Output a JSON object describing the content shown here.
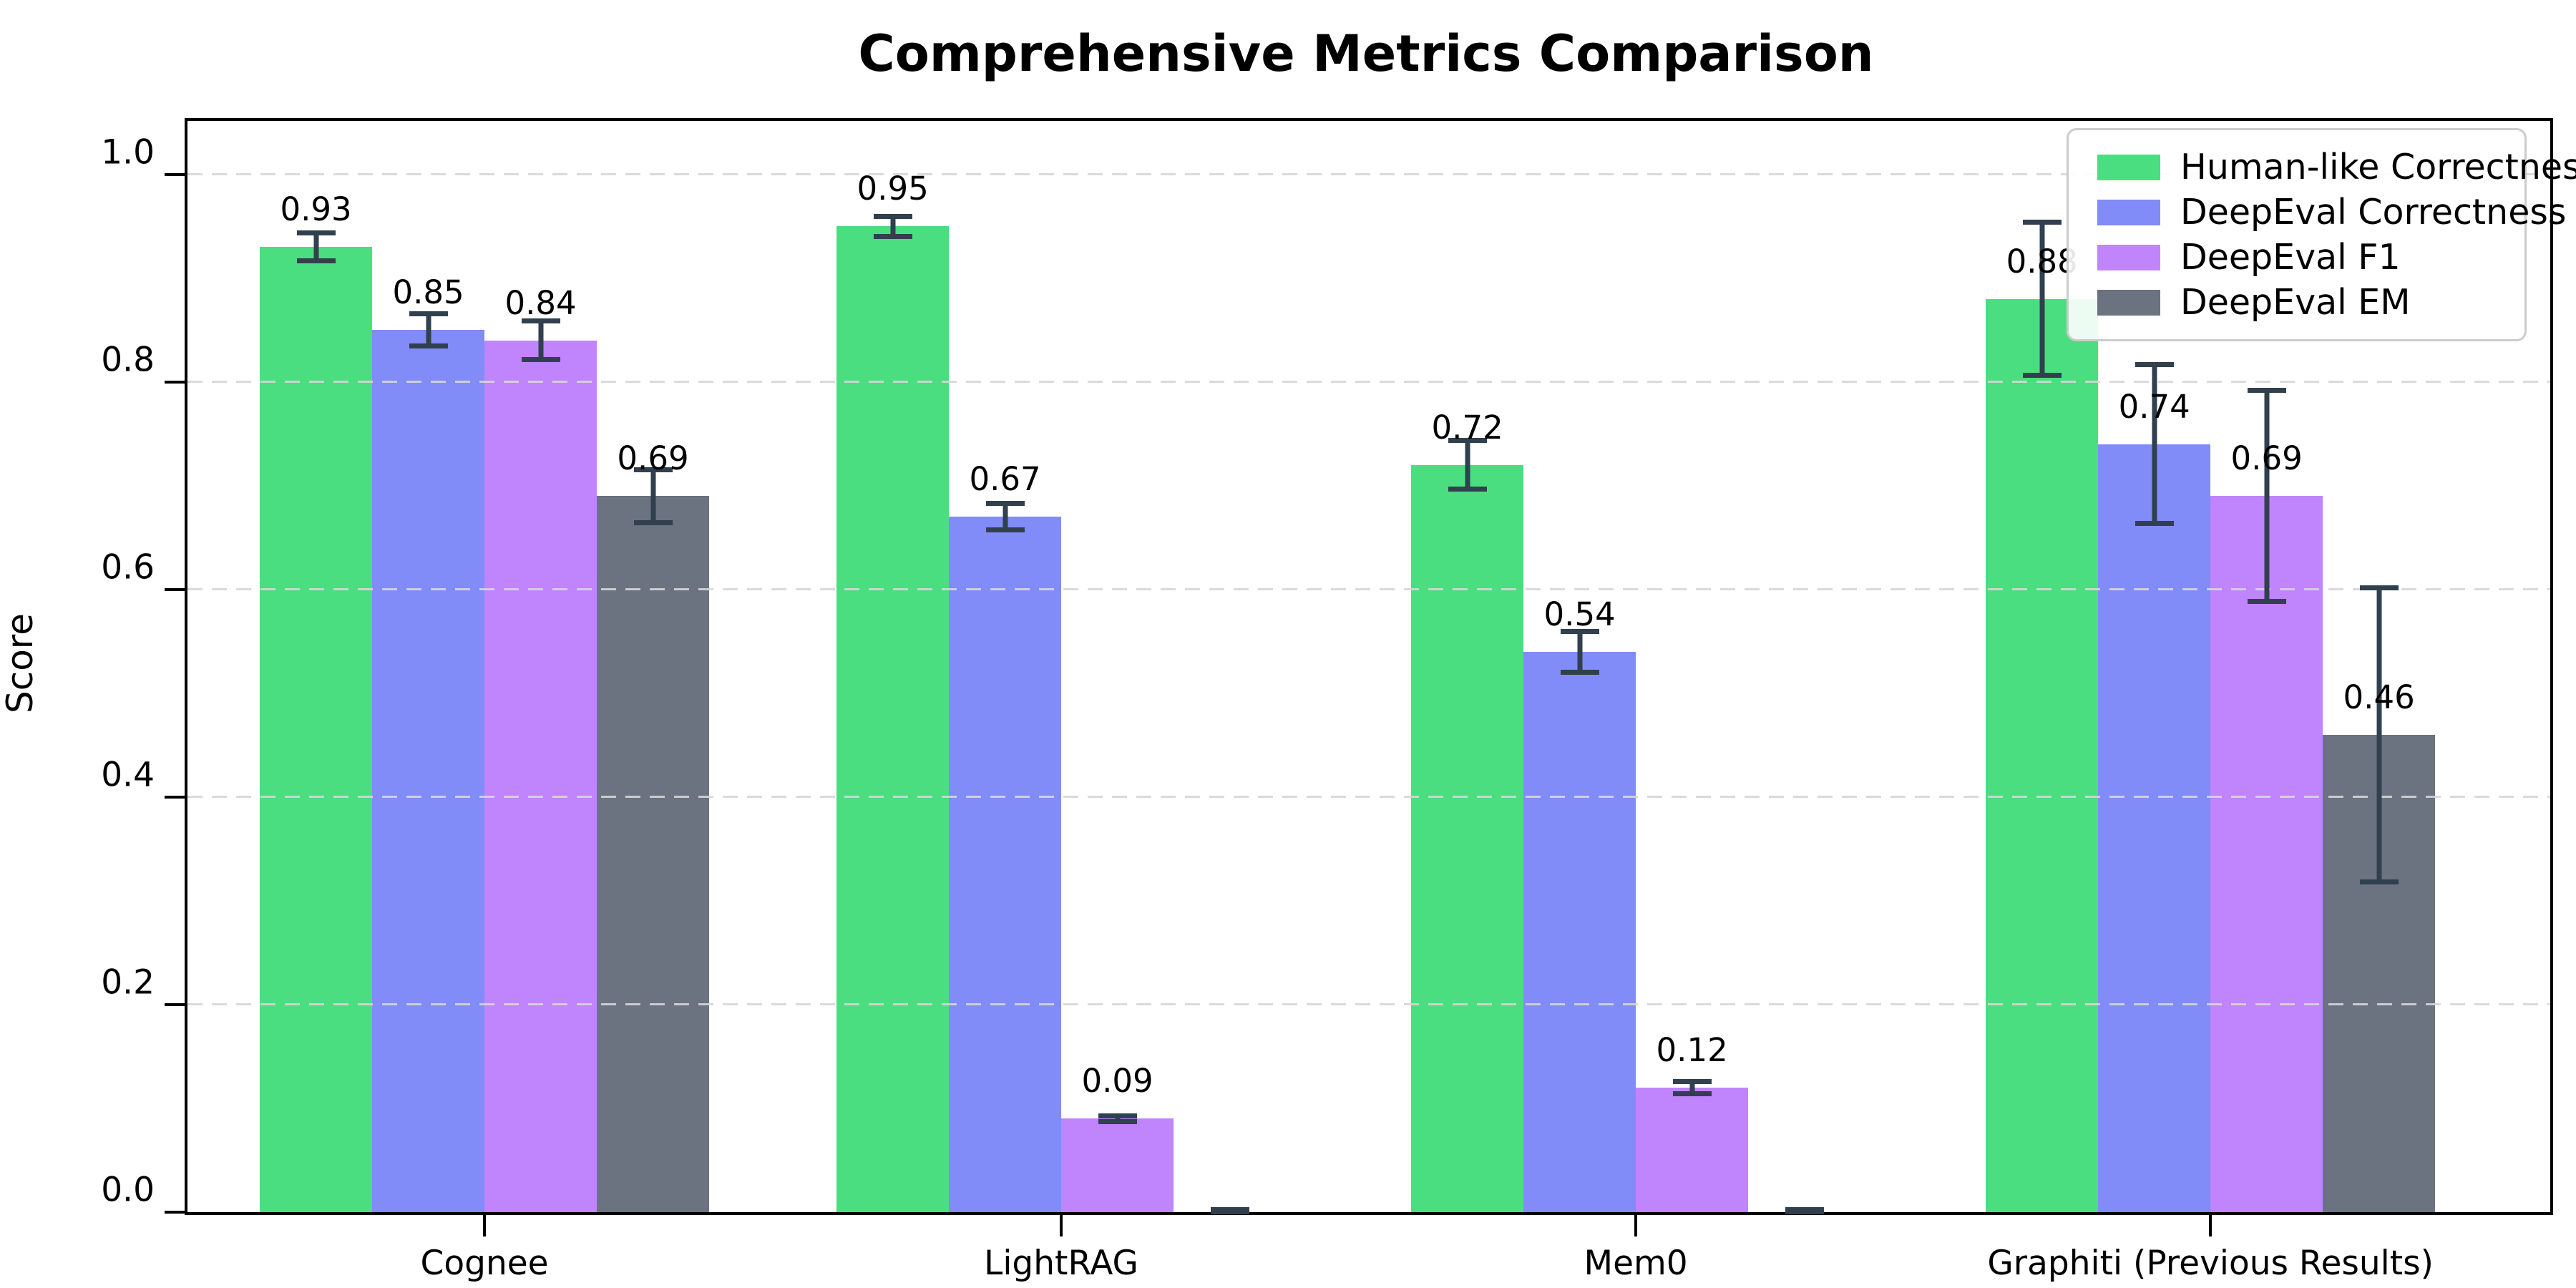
{
  "title": "Comprehensive Metrics Comparison",
  "chart_data": {
    "type": "bar",
    "title": "Comprehensive Metrics Comparison",
    "xlabel": "",
    "ylabel": "Score",
    "ylim": [
      0,
      1.05
    ],
    "yticks": [
      0.0,
      0.2,
      0.4,
      0.6,
      0.8,
      1.0
    ],
    "ytick_labels": [
      "0.0",
      "0.2",
      "0.4",
      "0.6",
      "0.8",
      "1.0"
    ],
    "grid": "horizontal-dashed",
    "legend_position": "upper-right",
    "categories": [
      "Cognee",
      "LightRAG",
      "Mem0",
      "Graphiti (Previous Results)"
    ],
    "series": [
      {
        "name": "Human-like Correctness",
        "color": "#4ade80",
        "values": [
          0.93,
          0.95,
          0.72,
          0.88
        ],
        "errors": [
          0.016,
          0.012,
          0.026,
          0.076
        ],
        "labels": [
          "0.93",
          "0.95",
          "0.72",
          "0.88"
        ]
      },
      {
        "name": "DeepEval Correctness",
        "color": "#818cf8",
        "values": [
          0.85,
          0.67,
          0.54,
          0.74
        ],
        "errors": [
          0.018,
          0.015,
          0.022,
          0.079
        ],
        "labels": [
          "0.85",
          "0.67",
          "0.54",
          "0.74"
        ]
      },
      {
        "name": "DeepEval F1",
        "color": "#c084fc",
        "values": [
          0.84,
          0.09,
          0.12,
          0.69
        ],
        "errors": [
          0.021,
          0.005,
          0.008,
          0.104
        ],
        "labels": [
          "0.84",
          "0.09",
          "0.12",
          "0.69"
        ]
      },
      {
        "name": "DeepEval EM",
        "color": "#6b7280",
        "values": [
          0.69,
          0.0,
          0.0,
          0.46
        ],
        "errors": [
          0.028,
          0.003,
          0.003,
          0.144
        ],
        "labels": [
          "0.69",
          "",
          "",
          "0.46"
        ]
      }
    ],
    "error_bar_color": "#31404e"
  }
}
